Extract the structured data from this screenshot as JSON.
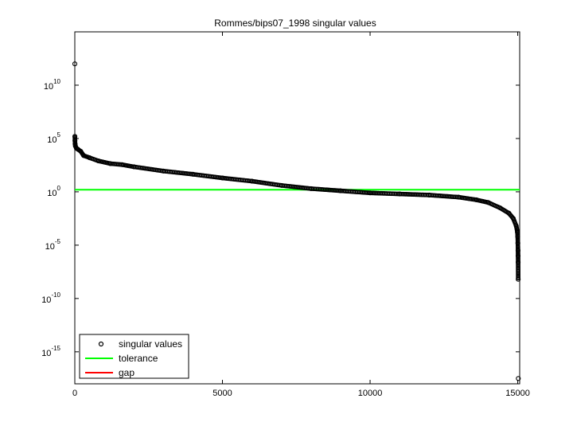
{
  "chart_data": {
    "type": "scatter",
    "title": "Rommes/bips07_1998 singular values",
    "xlabel": "",
    "ylabel": "",
    "x_scale": "linear",
    "y_scale": "log",
    "xlim": [
      0,
      15066
    ],
    "ylim_log10": [
      -18,
      15
    ],
    "x_ticks": [
      {
        "value": 0,
        "label": "0"
      },
      {
        "value": 5000,
        "label": "5000"
      },
      {
        "value": 10000,
        "label": "10000"
      },
      {
        "value": 15000,
        "label": "15000"
      }
    ],
    "y_ticks": [
      {
        "exp": 10,
        "label": "10",
        "power": "10"
      },
      {
        "exp": 5,
        "label": "10",
        "power": "5"
      },
      {
        "exp": 0,
        "label": "10",
        "power": "0"
      },
      {
        "exp": -5,
        "label": "10",
        "power": "-5"
      },
      {
        "exp": -10,
        "label": "10",
        "power": "-10"
      },
      {
        "exp": -15,
        "label": "10",
        "power": "-15"
      }
    ],
    "grid": false,
    "legend_position": "bottom-left",
    "legend": [
      {
        "label": "singular values",
        "color": "#000000",
        "marker": "circle"
      },
      {
        "label": "tolerance",
        "color": "#00ff00",
        "marker": "line"
      },
      {
        "label": "gap",
        "color": "#ff0000",
        "marker": "line"
      }
    ],
    "series": [
      {
        "name": "singular values",
        "color": "#000000",
        "marker": "circle",
        "points": [
          {
            "index": 1,
            "log10_sigma": 12.0
          },
          {
            "index": 2,
            "log10_sigma": 5.2
          },
          {
            "index": 5,
            "log10_sigma": 4.8
          },
          {
            "index": 10,
            "log10_sigma": 4.5
          },
          {
            "index": 20,
            "log10_sigma": 4.3
          },
          {
            "index": 50,
            "log10_sigma": 4.1
          },
          {
            "index": 100,
            "log10_sigma": 4.0
          },
          {
            "index": 200,
            "log10_sigma": 3.8
          },
          {
            "index": 300,
            "log10_sigma": 3.4
          },
          {
            "index": 500,
            "log10_sigma": 3.2
          },
          {
            "index": 800,
            "log10_sigma": 2.9
          },
          {
            "index": 1200,
            "log10_sigma": 2.65
          },
          {
            "index": 1600,
            "log10_sigma": 2.55
          },
          {
            "index": 2000,
            "log10_sigma": 2.35
          },
          {
            "index": 3000,
            "log10_sigma": 1.95
          },
          {
            "index": 4000,
            "log10_sigma": 1.65
          },
          {
            "index": 5000,
            "log10_sigma": 1.3
          },
          {
            "index": 6000,
            "log10_sigma": 1.0
          },
          {
            "index": 7000,
            "log10_sigma": 0.6
          },
          {
            "index": 8000,
            "log10_sigma": 0.3
          },
          {
            "index": 9000,
            "log10_sigma": 0.1
          },
          {
            "index": 10000,
            "log10_sigma": -0.1
          },
          {
            "index": 11000,
            "log10_sigma": -0.2
          },
          {
            "index": 12000,
            "log10_sigma": -0.3
          },
          {
            "index": 13000,
            "log10_sigma": -0.5
          },
          {
            "index": 13600,
            "log10_sigma": -0.75
          },
          {
            "index": 14000,
            "log10_sigma": -1.0
          },
          {
            "index": 14400,
            "log10_sigma": -1.5
          },
          {
            "index": 14700,
            "log10_sigma": -2.0
          },
          {
            "index": 14850,
            "log10_sigma": -2.5
          },
          {
            "index": 14950,
            "log10_sigma": -3.2
          },
          {
            "index": 14990,
            "log10_sigma": -3.8
          },
          {
            "index": 15000,
            "log10_sigma": -4.2
          },
          {
            "index": 15005,
            "log10_sigma": -4.8
          },
          {
            "index": 15010,
            "log10_sigma": -5.5
          },
          {
            "index": 15012,
            "log10_sigma": -6.0
          },
          {
            "index": 15014,
            "log10_sigma": -6.6
          },
          {
            "index": 15016,
            "log10_sigma": -8.2
          },
          {
            "index": 15020,
            "log10_sigma": -17.5
          }
        ]
      },
      {
        "name": "tolerance",
        "color": "#00ff00",
        "marker": "line",
        "log10_value": 0.2
      }
    ]
  }
}
